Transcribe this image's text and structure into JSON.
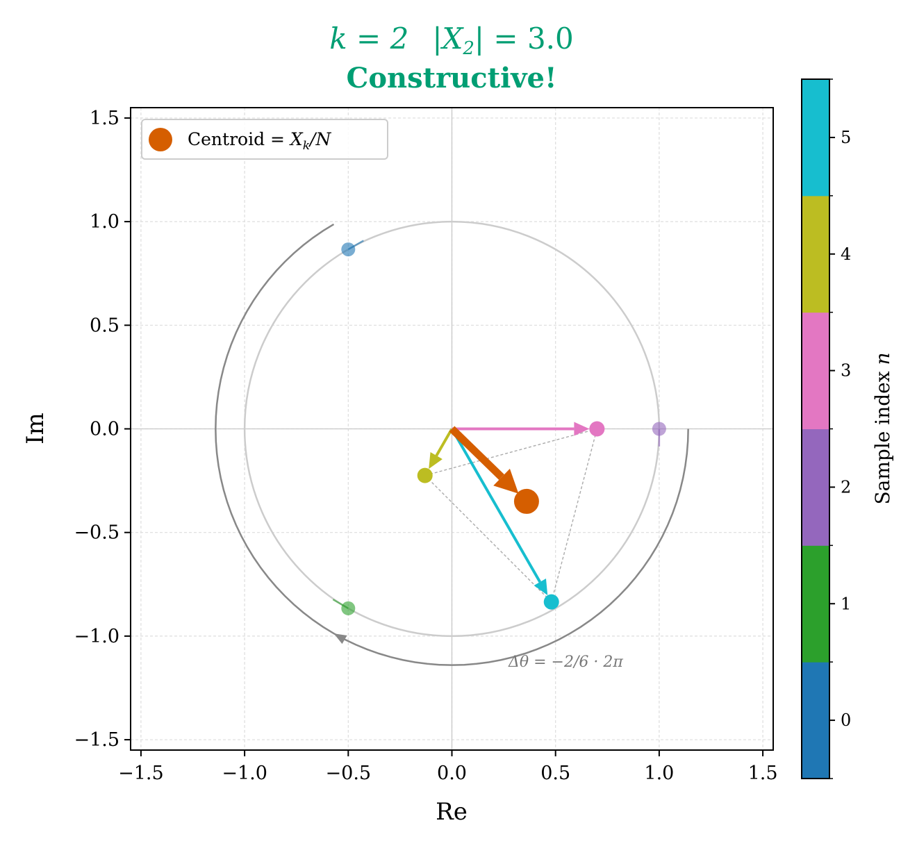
{
  "chart_data": {
    "type": "scatter",
    "title": {
      "line1_k": "k = 2",
      "line1_mag": "|X",
      "line1_sub": "2",
      "line1_val": "| = 3.0",
      "line2": "Constructive!"
    },
    "title_color": "#009e73",
    "xlabel": "Re",
    "ylabel": "Im",
    "xlim": [
      -1.55,
      1.55
    ],
    "ylim": [
      -1.55,
      1.55
    ],
    "xticks": [
      -1.5,
      -1.0,
      -0.5,
      0.0,
      0.5,
      1.0,
      1.5
    ],
    "yticks": [
      -1.5,
      -1.0,
      -0.5,
      0.0,
      0.5,
      1.0,
      1.5
    ],
    "xtick_labels": [
      "−1.5",
      "−1.0",
      "−0.5",
      "0.0",
      "0.5",
      "1.0",
      "1.5"
    ],
    "ytick_labels": [
      "−1.5",
      "−1.0",
      "−0.5",
      "0.0",
      "0.5",
      "1.0",
      "1.5"
    ],
    "grid": true,
    "unit_circle": true,
    "samples": [
      {
        "n": 0,
        "re": -0.5,
        "im": 0.866,
        "color": "#1f77b4",
        "faded": true
      },
      {
        "n": 1,
        "re": -0.5,
        "im": -0.866,
        "color": "#2ca02c",
        "faded": true
      },
      {
        "n": 2,
        "re": 1.0,
        "im": 0.0,
        "color": "#9467bd",
        "faded": true
      },
      {
        "n": 3,
        "re": 0.7,
        "im": 0.0,
        "color": "#e377c2",
        "faded": false
      },
      {
        "n": 4,
        "re": -0.13,
        "im": -0.225,
        "color": "#bcbd22",
        "faded": false
      },
      {
        "n": 5,
        "re": 0.48,
        "im": -0.835,
        "color": "#17becf",
        "faded": false
      }
    ],
    "centroid": {
      "re": 0.36,
      "im": -0.35,
      "color": "#d55e00"
    },
    "legend": {
      "position": "top-left",
      "label_prefix": "Centroid = ",
      "label_var": "X",
      "label_sub": "k",
      "label_suffix": "/N"
    },
    "rotation_annotation": "Δθ = −2/6 · 2π",
    "colorbar": {
      "label_text": "Sample index ",
      "label_var": "n",
      "ticks": [
        0,
        1,
        2,
        3,
        4,
        5
      ],
      "tick_labels": [
        "0",
        "1",
        "2",
        "3",
        "4",
        "5"
      ],
      "colors": [
        "#1f77b4",
        "#2ca02c",
        "#9467bd",
        "#e377c2",
        "#bcbd22",
        "#17becf"
      ]
    }
  }
}
